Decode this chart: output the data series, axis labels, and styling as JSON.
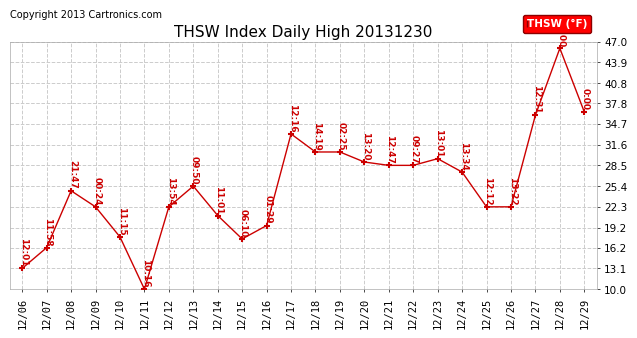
{
  "title": "THSW Index Daily High 20131230",
  "copyright": "Copyright 2013 Cartronics.com",
  "legend_label": "THSW (°F)",
  "x_labels": [
    "12/06",
    "12/07",
    "12/08",
    "12/09",
    "12/10",
    "12/11",
    "12/12",
    "12/13",
    "12/14",
    "12/15",
    "12/16",
    "12/17",
    "12/18",
    "12/19",
    "12/20",
    "12/21",
    "12/22",
    "12/23",
    "12/24",
    "12/25",
    "12/26",
    "12/27",
    "12/28",
    "12/29"
  ],
  "y_values": [
    13.1,
    16.2,
    24.7,
    22.3,
    17.8,
    10.0,
    22.3,
    25.4,
    21.0,
    17.5,
    19.5,
    33.2,
    30.5,
    30.5,
    29.0,
    28.5,
    28.5,
    29.5,
    27.5,
    22.3,
    22.3,
    36.0,
    46.0,
    36.5
  ],
  "time_labels": [
    "12:01",
    "11:58",
    "21:47",
    "00:24",
    "11:15",
    "10:16",
    "13:54",
    "09:50",
    "11:01",
    "06:10",
    "01:29",
    "12:16",
    "14:19",
    "02:25",
    "13:20",
    "12:47",
    "09:27",
    "13:01",
    "13:34",
    "12:12",
    "13:22",
    "12:31",
    "9:00",
    "0:00"
  ],
  "line_color": "#cc0000",
  "marker_color": "#cc0000",
  "background_color": "#ffffff",
  "grid_color": "#cccccc",
  "ylim": [
    10.0,
    47.0
  ],
  "yticks": [
    10.0,
    13.1,
    16.2,
    19.2,
    22.3,
    25.4,
    28.5,
    31.6,
    34.7,
    37.8,
    40.8,
    43.9,
    47.0
  ],
  "title_fontsize": 11,
  "label_fontsize": 6.5,
  "tick_fontsize": 7.5,
  "copyright_fontsize": 7
}
